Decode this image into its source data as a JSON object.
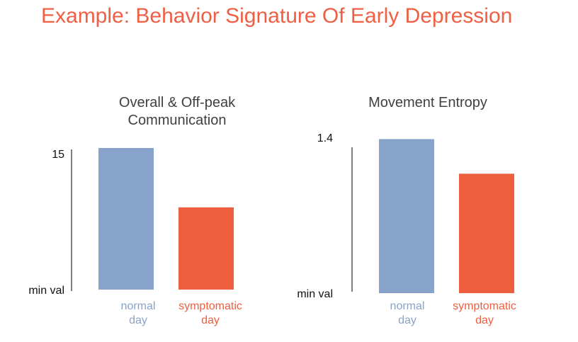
{
  "title": "Example: Behavior Signature Of Early Depression",
  "chart_data": [
    {
      "type": "bar",
      "title_lines": [
        "Overall & Off-peak",
        "Communication"
      ],
      "categories": [
        [
          "normal",
          "day"
        ],
        [
          "symptomatic",
          "day"
        ]
      ],
      "values": [
        15.5,
        10.3
      ],
      "y_tick_labels": [
        "15",
        "min val"
      ],
      "y_tick_values": [
        15,
        3.1
      ],
      "ylim": [
        3.1,
        15.5
      ],
      "colors": [
        "#87a3c9",
        "#ee5f40"
      ],
      "grid": false,
      "legend": "none"
    },
    {
      "type": "bar",
      "title_lines": [
        "Movement Entropy"
      ],
      "categories": [
        [
          "normal",
          "day"
        ],
        [
          "symptomatic",
          "day"
        ]
      ],
      "values": [
        1.39,
        1.19
      ],
      "y_tick_labels": [
        "1.4",
        "min val"
      ],
      "y_tick_values": [
        1.4,
        0.5
      ],
      "ylim": [
        0.5,
        1.4
      ],
      "colors": [
        "#87a3c9",
        "#ee5f40"
      ],
      "grid": false,
      "legend": "none"
    }
  ]
}
